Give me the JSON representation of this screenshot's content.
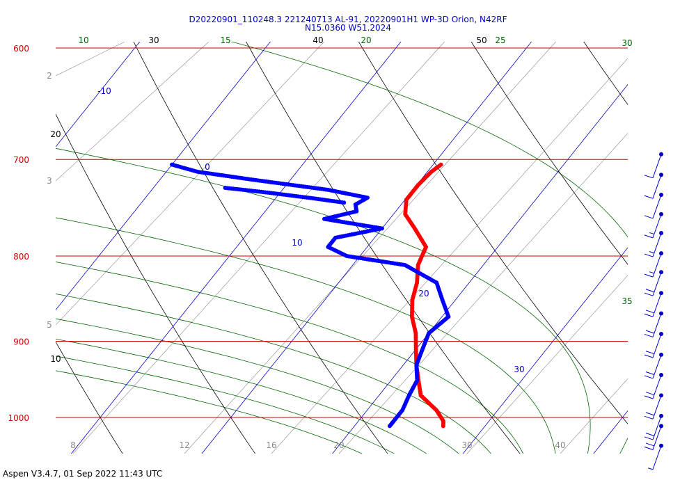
{
  "title": {
    "line1": "D20220901_110248.3 221240713 AL-91, 20220901H1 WP-3D Orion, N42RF",
    "line2": "N15.0360 W51.2024"
  },
  "footer": "Aspen V3.4.7, 01 Sep 2022  11:43 UTC",
  "colors": {
    "isobar": "#cc0000",
    "dry_adiabat": "#000000",
    "isotherm": "#0000cc",
    "moist_adiabat": "#006600",
    "mixing_ratio": "#888888",
    "temperature": "#ff0000",
    "dewpoint": "#0000ff",
    "wind_barbs": "#0000cc"
  },
  "chart_data": {
    "type": "line",
    "ylim": [
      600,
      1050
    ],
    "isobars": [
      600,
      700,
      800,
      900,
      1000
    ],
    "isotherm_labels": [
      -10,
      0,
      10,
      20,
      30
    ],
    "dry_adiabat_labels": [
      10,
      20,
      30,
      40,
      50
    ],
    "moist_adiabat_labels": [
      10,
      15,
      20,
      25,
      30,
      35
    ],
    "mixing_ratio_labels": [
      2,
      3,
      5,
      8,
      12,
      16,
      20,
      30,
      40
    ],
    "series": [
      {
        "name": "",
        "kind": "temperature",
        "pressure": [
          705,
          712,
          725,
          740,
          755,
          770,
          790,
          810,
          830,
          850,
          870,
          890,
          910,
          930,
          950,
          970,
          990,
          1005,
          1012
        ],
        "values": [
          10.6,
          10.3,
          10.1,
          10.1,
          10.9,
          12.5,
          14.5,
          15.0,
          16.0,
          16.7,
          17.7,
          19.0,
          20.0,
          21.0,
          22.1,
          23.2,
          25.3,
          26.5,
          26.8
        ]
      },
      {
        "name": "",
        "kind": "dewpoint",
        "pressure": [
          705,
          712,
          720,
          730,
          738,
          745,
          752,
          760,
          770,
          780,
          790,
          800,
          810,
          830,
          850,
          870,
          890,
          910,
          930,
          950,
          970,
          990,
          1005,
          1012
        ],
        "values": [
          -10.0,
          -7.6,
          -2.8,
          3.5,
          7.0,
          6.5,
          7.0,
          5.0,
          10.0,
          7.0,
          7.0,
          9.0,
          14.0,
          17.5,
          19.0,
          20.5,
          20.0,
          20.5,
          21.0,
          22.0,
          22.3,
          22.7,
          22.7,
          22.7
        ]
      },
      {
        "name": "",
        "kind": "dewpoint_secondary",
        "pressure": [
          728,
          732,
          738,
          743
        ],
        "values": [
          -4.5,
          -1.5,
          2.5,
          5.5
        ]
      }
    ],
    "wind_barbs": [
      {
        "pressure": 695,
        "speed_kt": 10,
        "dir_deg": 110
      },
      {
        "pressure": 715,
        "speed_kt": 10,
        "dir_deg": 105
      },
      {
        "pressure": 735,
        "speed_kt": 10,
        "dir_deg": 105
      },
      {
        "pressure": 755,
        "speed_kt": 15,
        "dir_deg": 100
      },
      {
        "pressure": 775,
        "speed_kt": 15,
        "dir_deg": 100
      },
      {
        "pressure": 797,
        "speed_kt": 15,
        "dir_deg": 100
      },
      {
        "pressure": 818,
        "speed_kt": 20,
        "dir_deg": 95
      },
      {
        "pressure": 842,
        "speed_kt": 20,
        "dir_deg": 95
      },
      {
        "pressure": 866,
        "speed_kt": 20,
        "dir_deg": 95
      },
      {
        "pressure": 891,
        "speed_kt": 20,
        "dir_deg": 90
      },
      {
        "pressure": 917,
        "speed_kt": 20,
        "dir_deg": 90
      },
      {
        "pressure": 943,
        "speed_kt": 20,
        "dir_deg": 90
      },
      {
        "pressure": 970,
        "speed_kt": 20,
        "dir_deg": 90
      },
      {
        "pressure": 998,
        "speed_kt": 20,
        "dir_deg": 90
      },
      {
        "pressure": 1012,
        "speed_kt": 20,
        "dir_deg": 85
      },
      {
        "pressure": 1040,
        "speed_kt": 5,
        "dir_deg": 90
      }
    ]
  }
}
